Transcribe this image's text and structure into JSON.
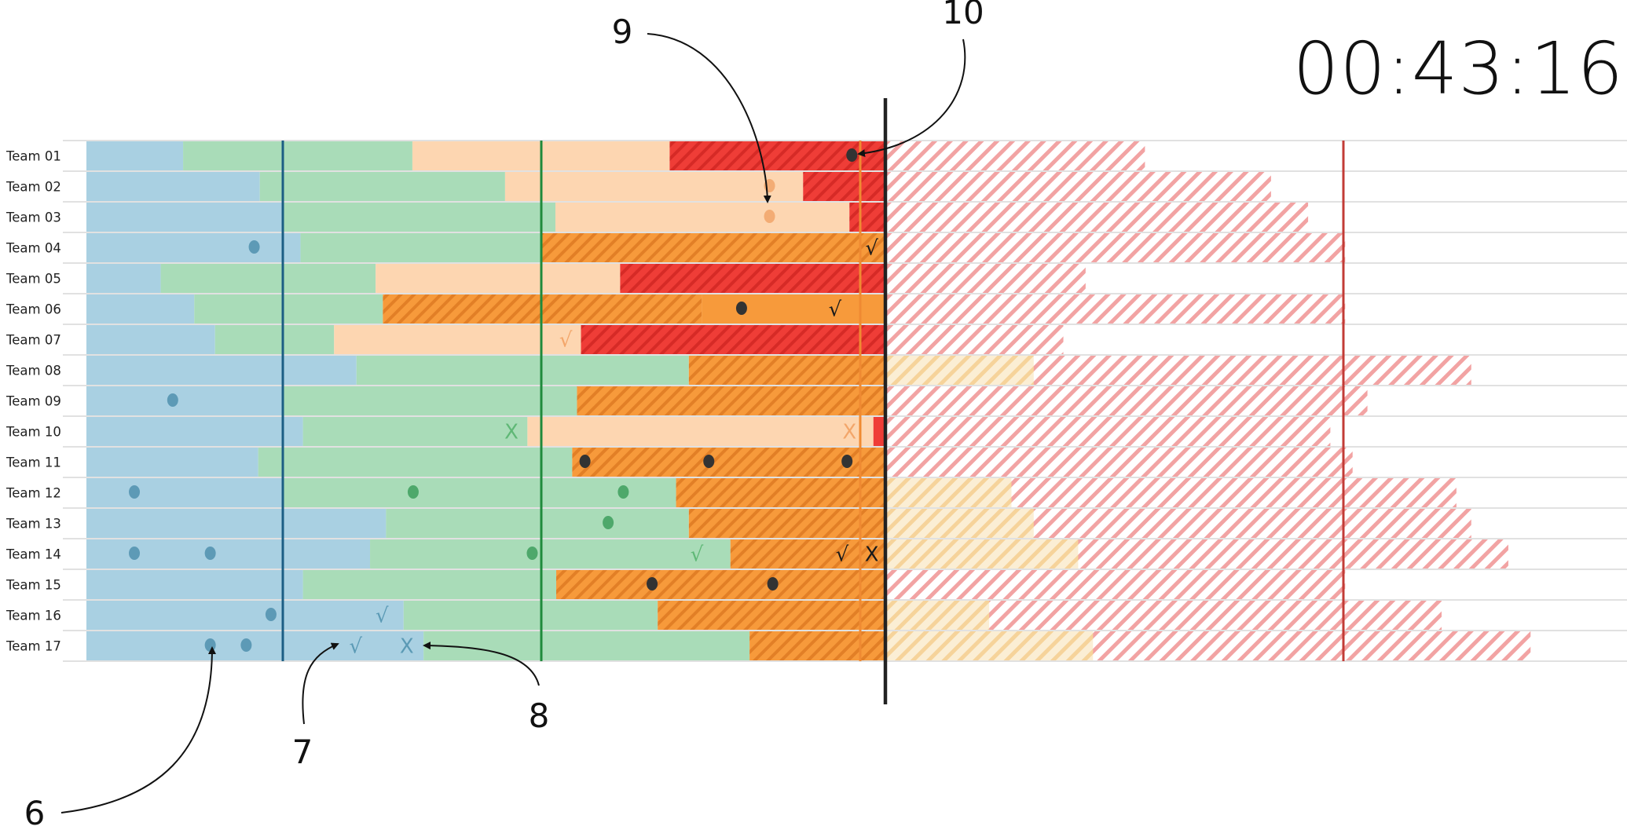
{
  "timer": "00:43:16",
  "callouts": [
    "6",
    "7",
    "8",
    "9",
    "10"
  ],
  "teams": [
    {
      "label": "Team 01",
      "segments": [
        [
          "blue",
          0,
          0.121
        ],
        [
          "green",
          0.121,
          0.408
        ],
        [
          "peach",
          0.408,
          0.73
        ],
        [
          "redh",
          0.73,
          1
        ]
      ],
      "ghost": 0.35,
      "marks": [
        [
          "dot",
          0.958,
          "dark"
        ]
      ]
    },
    {
      "label": "Team 02",
      "segments": [
        [
          "blue",
          0,
          0.217
        ],
        [
          "green",
          0.217,
          0.524
        ],
        [
          "peach",
          0.524,
          0.897
        ],
        [
          "redh",
          0.897,
          1
        ]
      ],
      "ghost": 0.52,
      "marks": [
        [
          "dot",
          0.855,
          "peach"
        ]
      ]
    },
    {
      "label": "Team 03",
      "segments": [
        [
          "blue",
          0,
          0.245
        ],
        [
          "green",
          0.245,
          0.587
        ],
        [
          "peach",
          0.587,
          0.955
        ],
        [
          "redh",
          0.955,
          1
        ]
      ],
      "ghost": 0.57,
      "marks": [
        [
          "dot",
          0.855,
          "peach"
        ]
      ]
    },
    {
      "label": "Team 04",
      "segments": [
        [
          "blue",
          0,
          0.268
        ],
        [
          "green",
          0.268,
          0.57
        ],
        [
          "orangeh",
          0.57,
          1
        ]
      ],
      "ghost": 0.62,
      "marks": [
        [
          "dot",
          0.21,
          "blue"
        ],
        [
          "check",
          0.983,
          "dark"
        ]
      ]
    },
    {
      "label": "Team 05",
      "segments": [
        [
          "blue",
          0,
          0.093
        ],
        [
          "green",
          0.093,
          0.362
        ],
        [
          "peach",
          0.362,
          0.668
        ],
        [
          "redh",
          0.668,
          1
        ]
      ],
      "ghost": 0.27,
      "marks": []
    },
    {
      "label": "Team 06",
      "segments": [
        [
          "blue",
          0,
          0.135
        ],
        [
          "green",
          0.135,
          0.371
        ],
        [
          "orangeh",
          0.371,
          0.77
        ],
        [
          "orange",
          0.77,
          1
        ]
      ],
      "ghost": 0.62,
      "marks": [
        [
          "dot",
          0.82,
          "dark"
        ],
        [
          "check",
          0.937,
          "dark"
        ]
      ]
    },
    {
      "label": "Team 07",
      "segments": [
        [
          "blue",
          0,
          0.161
        ],
        [
          "green",
          0.161,
          0.31
        ],
        [
          "peach",
          0.31,
          0.619
        ],
        [
          "redh",
          0.619,
          1
        ]
      ],
      "ghost": 0.24,
      "marks": [
        [
          "check",
          0.6,
          "peach"
        ]
      ]
    },
    {
      "label": "Team 08",
      "segments": [
        [
          "blue",
          0,
          0.338
        ],
        [
          "green",
          0.338,
          0.754
        ],
        [
          "orangeh",
          0.754,
          1
        ]
      ],
      "ghost": 0.79,
      "marks": []
    },
    {
      "label": "Team 09",
      "segments": [
        [
          "blue",
          0,
          0.245
        ],
        [
          "green",
          0.245,
          0.614
        ],
        [
          "orangeh",
          0.614,
          1
        ]
      ],
      "ghost": 0.65,
      "marks": [
        [
          "dot",
          0.108,
          "blue"
        ]
      ]
    },
    {
      "label": "Team 10",
      "segments": [
        [
          "blue",
          0,
          0.271
        ],
        [
          "green",
          0.271,
          0.552
        ],
        [
          "peach",
          0.552,
          0.985
        ],
        [
          "red",
          0.985,
          1
        ]
      ],
      "ghost": 0.6,
      "marks": [
        [
          "x",
          0.532,
          "green"
        ],
        [
          "x",
          0.955,
          "peach"
        ]
      ]
    },
    {
      "label": "Team 11",
      "segments": [
        [
          "blue",
          0,
          0.215
        ],
        [
          "green",
          0.215,
          0.608
        ],
        [
          "orangeh",
          0.608,
          1
        ]
      ],
      "ghost": 0.63,
      "marks": [
        [
          "dot",
          0.624,
          "dark"
        ],
        [
          "dot",
          0.779,
          "dark"
        ],
        [
          "dot",
          0.952,
          "dark"
        ]
      ]
    },
    {
      "label": "Team 12",
      "segments": [
        [
          "blue",
          0,
          0.245
        ],
        [
          "green",
          0.245,
          0.738
        ],
        [
          "orangeh",
          0.738,
          1
        ]
      ],
      "ghost": 0.77,
      "marks": [
        [
          "dot",
          0.06,
          "blue"
        ],
        [
          "dot",
          0.409,
          "green"
        ],
        [
          "dot",
          0.672,
          "green"
        ]
      ]
    },
    {
      "label": "Team 13",
      "segments": [
        [
          "blue",
          0,
          0.375
        ],
        [
          "green",
          0.375,
          0.754
        ],
        [
          "orangeh",
          0.754,
          1
        ]
      ],
      "ghost": 0.79,
      "marks": [
        [
          "dot",
          0.653,
          "green"
        ]
      ]
    },
    {
      "label": "Team 14",
      "segments": [
        [
          "blue",
          0,
          0.355
        ],
        [
          "green",
          0.355,
          0.806
        ],
        [
          "orangeh",
          0.806,
          1
        ]
      ],
      "ghost": 0.84,
      "marks": [
        [
          "dot",
          0.06,
          "blue"
        ],
        [
          "dot",
          0.155,
          "blue"
        ],
        [
          "dot",
          0.558,
          "green"
        ],
        [
          "check",
          0.764,
          "green"
        ],
        [
          "check",
          0.946,
          "dark"
        ],
        [
          "x",
          0.983,
          "dark"
        ]
      ]
    },
    {
      "label": "Team 15",
      "segments": [
        [
          "blue",
          0,
          0.271
        ],
        [
          "green",
          0.271,
          0.588
        ],
        [
          "orangeh",
          0.588,
          1
        ]
      ],
      "ghost": 0.62,
      "marks": [
        [
          "dot",
          0.708,
          "dark"
        ],
        [
          "dot",
          0.859,
          "dark"
        ]
      ]
    },
    {
      "label": "Team 16",
      "segments": [
        [
          "blue",
          0,
          0.397
        ],
        [
          "green",
          0.397,
          0.715
        ],
        [
          "orangeh",
          0.715,
          1
        ]
      ],
      "ghost": 0.75,
      "marks": [
        [
          "dot",
          0.231,
          "blue"
        ],
        [
          "check",
          0.37,
          "blue"
        ]
      ]
    },
    {
      "label": "Team 17",
      "segments": [
        [
          "blue",
          0,
          0.422
        ],
        [
          "green",
          0.422,
          0.83
        ],
        [
          "orangeh",
          0.83,
          1
        ]
      ],
      "ghost": 0.87,
      "marks": [
        [
          "dot",
          0.155,
          "blue"
        ],
        [
          "dot",
          0.2,
          "blue"
        ],
        [
          "check",
          0.337,
          "blue"
        ],
        [
          "x",
          0.401,
          "blue"
        ]
      ]
    }
  ],
  "colors": {
    "blue": "#a9d0e2",
    "green": "#a9dcb8",
    "peach": "#fdd6b1",
    "orange": "#f79a3b",
    "red": "#ef3d37",
    "ghost": "#f2a3a3",
    "ghostYellow": "#f8deae",
    "dark": "#333333",
    "line_blue": "#1c5e84",
    "line_green": "#1f8a3c",
    "line_orange": "#ef8a32",
    "line_red": "#c23b36",
    "line_now": "#222222",
    "dot_blue": "#5d9ab6",
    "dot_green": "#4ea86b",
    "dot_peach": "#f3ac74",
    "mark_blue": "#5b9ab5",
    "mark_green": "#5fb876",
    "mark_peach": "#f3a66a"
  }
}
